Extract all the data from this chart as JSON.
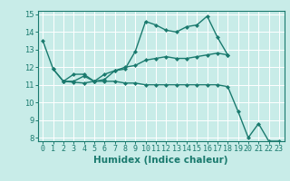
{
  "title": "",
  "xlabel": "Humidex (Indice chaleur)",
  "ylabel": "",
  "bg_color": "#c8ece8",
  "grid_color": "#ffffff",
  "line_color": "#1a7a6e",
  "xlim": [
    -0.5,
    23.5
  ],
  "ylim": [
    7.8,
    15.2
  ],
  "yticks": [
    8,
    9,
    10,
    11,
    12,
    13,
    14,
    15
  ],
  "xticks": [
    0,
    1,
    2,
    3,
    4,
    5,
    6,
    7,
    8,
    9,
    10,
    11,
    12,
    13,
    14,
    15,
    16,
    17,
    18,
    19,
    20,
    21,
    22,
    23
  ],
  "line1_x": [
    0,
    1,
    2,
    3,
    4,
    5,
    6,
    7,
    8,
    9,
    10,
    11,
    12,
    13,
    14,
    15,
    16,
    17,
    18
  ],
  "line1_y": [
    13.5,
    11.9,
    11.2,
    11.15,
    11.1,
    11.2,
    11.3,
    11.8,
    11.9,
    12.9,
    14.6,
    14.4,
    14.1,
    14.0,
    14.3,
    14.4,
    14.9,
    13.7,
    12.7
  ],
  "line2_x": [
    1,
    2,
    3,
    4,
    5,
    6,
    7,
    8,
    9,
    10,
    11,
    12,
    13,
    14,
    15,
    16,
    17,
    18
  ],
  "line2_y": [
    11.9,
    11.2,
    11.6,
    11.6,
    11.2,
    11.6,
    11.8,
    12.0,
    12.1,
    12.4,
    12.5,
    12.6,
    12.5,
    12.5,
    12.6,
    12.7,
    12.8,
    12.7
  ],
  "line3_x": [
    2,
    3,
    4,
    5,
    6,
    7,
    8,
    9,
    10,
    11,
    12,
    13,
    14,
    15,
    16,
    17,
    18,
    19,
    20,
    21,
    22,
    23
  ],
  "line3_y": [
    11.2,
    11.2,
    11.5,
    11.2,
    11.2,
    11.2,
    11.1,
    11.1,
    11.0,
    11.0,
    11.0,
    11.0,
    11.0,
    11.0,
    11.0,
    11.0,
    10.9,
    9.5,
    8.0,
    8.8,
    7.8,
    7.8
  ],
  "marker_size": 2.5,
  "line_width": 1.0,
  "tick_fontsize": 6.0,
  "xlabel_fontsize": 7.5
}
